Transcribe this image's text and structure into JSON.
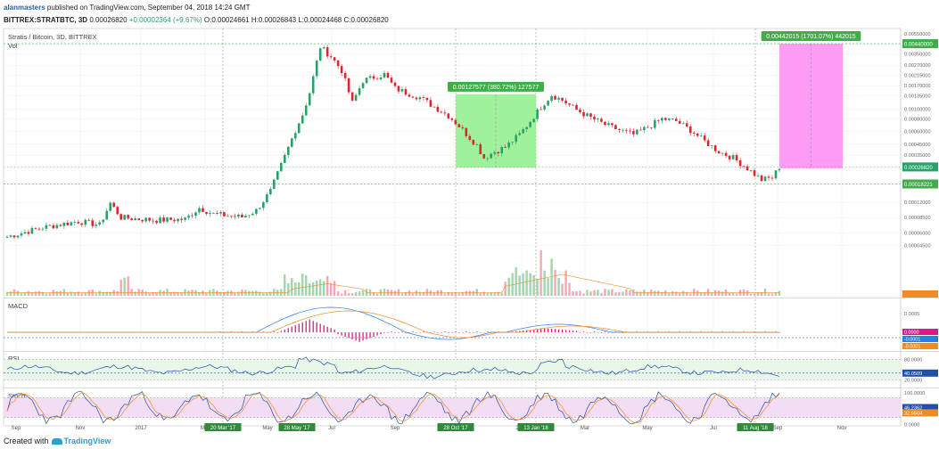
{
  "header": {
    "author": "alanmasters",
    "published": " published on TradingView.com, September 04, 2018 14:24 GMT",
    "symbol": "BITTREX:STRATBTC, 3D",
    "last": "0.00026820",
    "change": "+0.00002364 (+9.67%)",
    "ohlc": "O:0.00024661 H:0.00026843 L:0.00024468 C:0.00026820"
  },
  "pane_labels": {
    "main": "Stratis / Bitcoin, 3D, BITTREX",
    "vol": "Vol",
    "macd": "MACD",
    "rsi": "RSI",
    "stoch": "Stoch"
  },
  "footer": {
    "created_with": "Created with",
    "brand": "TradingView"
  },
  "colors": {
    "up": "#26a269",
    "down": "#e0242b",
    "volume_up": "#9ed8a9",
    "volume_down": "#f4a8b4",
    "macd": "#2a7de1",
    "signal": "#f08a24",
    "hist": "#d81b8c",
    "rsi": "#2150a8",
    "stoch_k": "#2150a8",
    "stoch_d": "#f08a24",
    "range_green": "#8ef08a",
    "range_pink": "#ff8cf4"
  },
  "chart_data": [
    {
      "type": "candlestick",
      "pane": "main",
      "y_axis_ticks": [
        "0.00550000",
        "0.00440000",
        "0.00350000",
        "0.00270000",
        "0.00215000",
        "0.00170000",
        "0.00135000",
        "0.00100000",
        "0.00080000",
        "0.00060000",
        "0.00045000",
        "0.00035000",
        "0.00026820",
        "0.00018221",
        "0.00012000",
        "0.00008500",
        "0.00006000",
        "0.00004500",
        "0.00001500"
      ],
      "x_axis_ticks": [
        "Sep",
        "Nov",
        "2017",
        "Mar",
        "May",
        "Jul",
        "Sep",
        "Nov",
        "2018",
        "Mar",
        "May",
        "Jul",
        "Sep",
        "Nov"
      ],
      "highlighted_dates": [
        "20 Mar '17",
        "28 May '17",
        "28 Oct '17",
        "13 Jan '18",
        "11 Aug '18"
      ],
      "price_labels": {
        "last": "0.00026820",
        "support": "0.00018221",
        "target": "0.00440000"
      },
      "range_boxes": [
        {
          "label": "0.00127577 (380.72%) 127577",
          "from": 0.000265,
          "to": 0.001395
        },
        {
          "label": "0.00442015 (1701.07%) 442015",
          "from": 0.00026,
          "to": 0.0044
        }
      ]
    },
    {
      "type": "line",
      "pane": "macd",
      "y_axis_ticks": [
        "0.0005",
        "0.0000",
        "-0.0001",
        "-0.0001"
      ]
    },
    {
      "type": "line",
      "pane": "rsi",
      "y_axis_ticks": [
        "80.0000",
        "40.0509",
        "20.0000"
      ]
    },
    {
      "type": "line",
      "pane": "stoch",
      "y_axis_ticks": [
        "100.0000",
        "46.2362",
        "32.6504",
        "0.0000"
      ]
    }
  ]
}
